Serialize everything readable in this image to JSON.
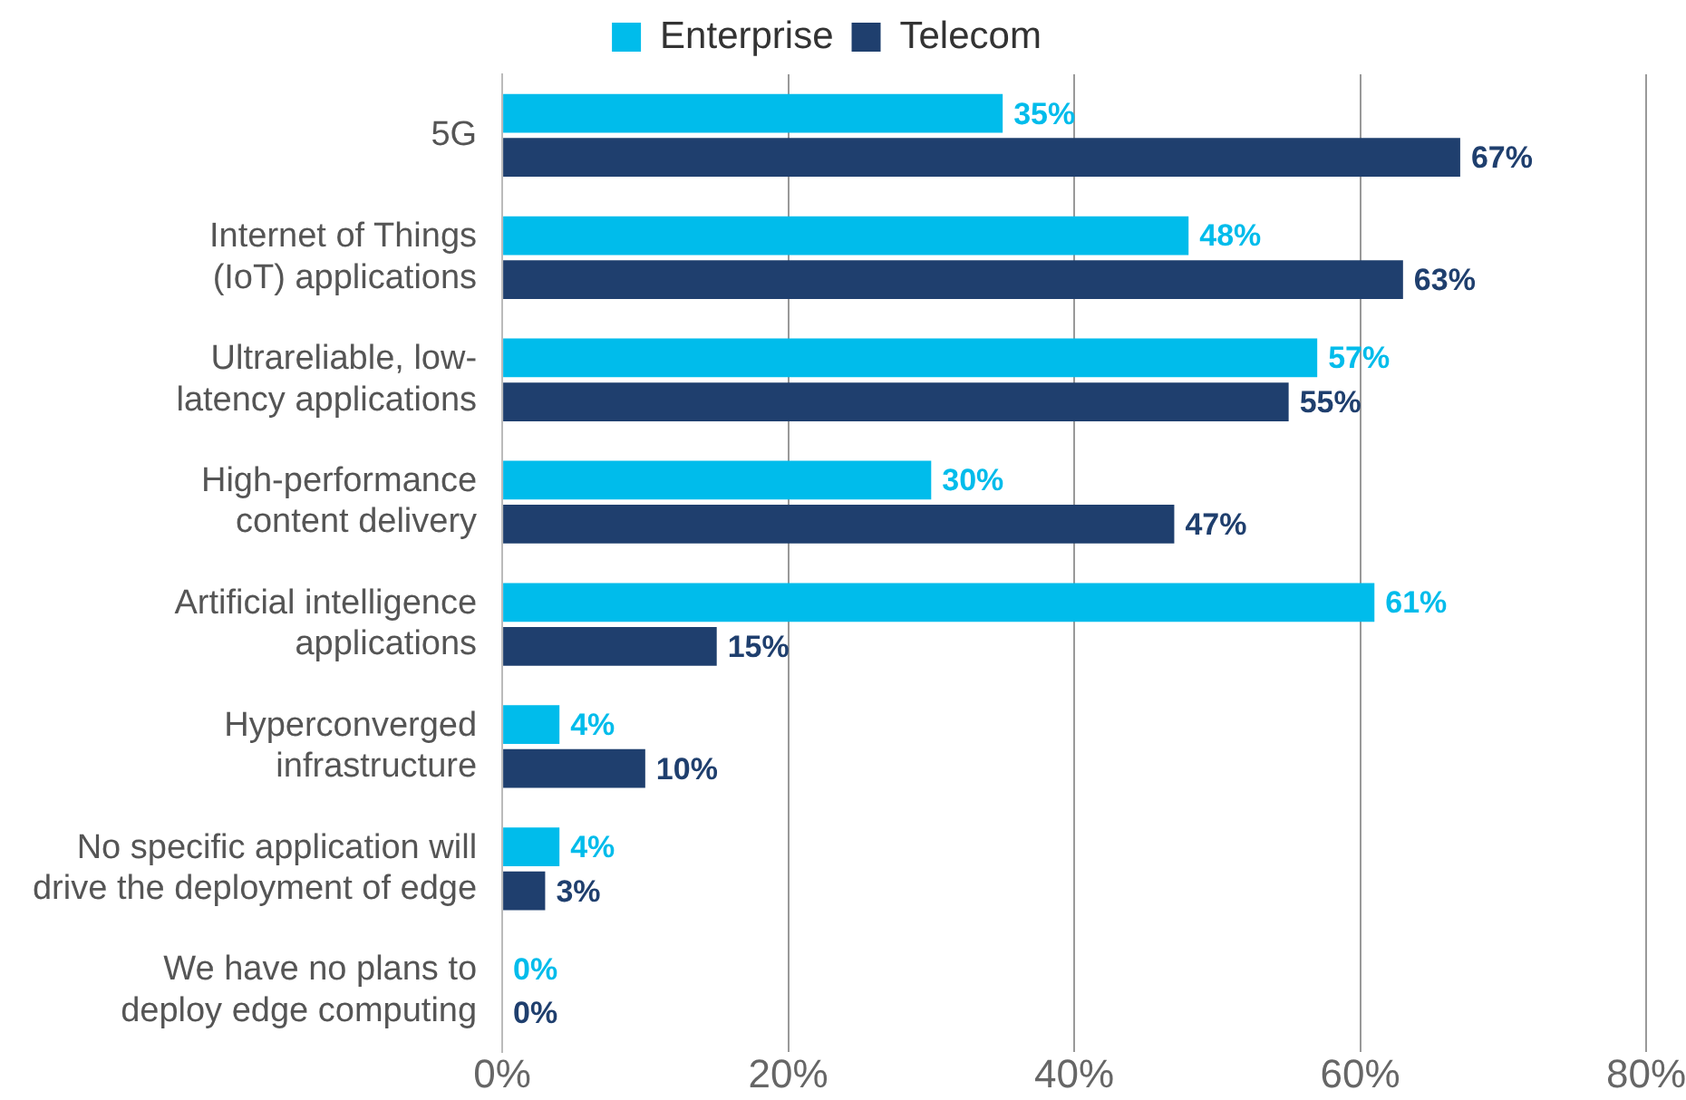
{
  "chart_data": {
    "type": "bar",
    "orientation": "horizontal",
    "categories": [
      "5G",
      "Internet of Things (IoT) applications",
      "Ultrareliable, low-latency applications",
      "High-performance content delivery",
      "Artificial intelligence applications",
      "Hyperconverged infrastructure",
      "No specific application will drive the deployment of edge",
      "We have no plans to deploy edge computing"
    ],
    "series": [
      {
        "name": "Enterprise",
        "color": "#00bceb",
        "values": [
          35,
          48,
          57,
          30,
          61,
          4,
          4,
          0
        ],
        "value_labels": [
          "35%",
          "48%",
          "57%",
          "30%",
          "61%",
          "4%",
          "4%",
          "0%"
        ]
      },
      {
        "name": "Telecom",
        "color": "#1f3f6e",
        "values": [
          67,
          63,
          55,
          47,
          15,
          10,
          3,
          0
        ],
        "value_labels": [
          "67%",
          "63%",
          "55%",
          "47%",
          "15%",
          "10%",
          "3%",
          "0%"
        ]
      }
    ],
    "xlim": [
      0,
      80
    ],
    "xticks": [
      {
        "value": 0,
        "label": "0%"
      },
      {
        "value": 20,
        "label": "20%"
      },
      {
        "value": 40,
        "label": "40%"
      },
      {
        "value": 60,
        "label": "60%"
      },
      {
        "value": 80,
        "label": "80%"
      }
    ],
    "grid": "x",
    "legend": "top"
  }
}
